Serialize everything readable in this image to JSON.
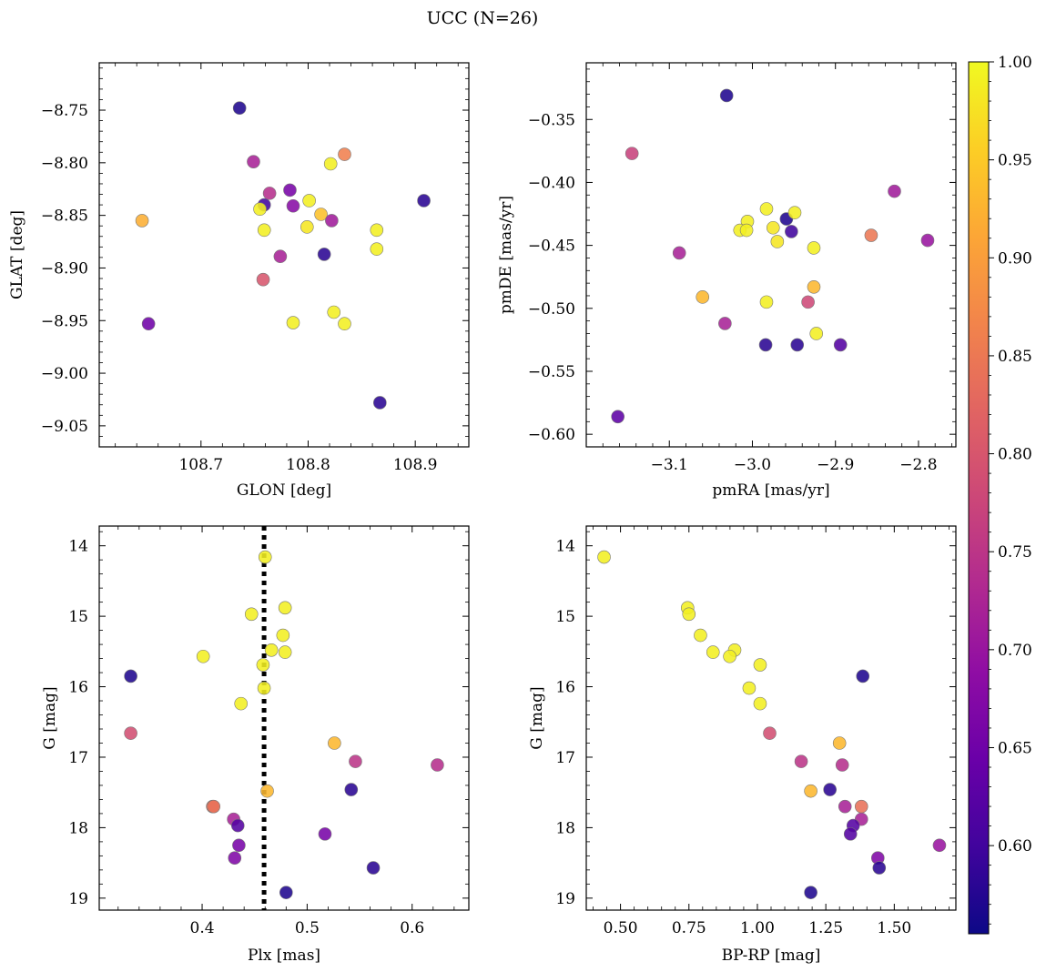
{
  "figure": {
    "suptitle": "UCC (N=26)"
  },
  "colorbar": {
    "vmin": 0.555,
    "vmax": 1.0,
    "ticks": [
      0.6,
      0.65,
      0.7,
      0.75,
      0.8,
      0.85,
      0.9,
      0.95,
      1.0
    ],
    "tick_labels": [
      "0.60",
      "0.65",
      "0.70",
      "0.75",
      "0.80",
      "0.85",
      "0.90",
      "0.95",
      "1.00"
    ],
    "colormap": "plasma"
  },
  "chart_data": [
    {
      "type": "scatter",
      "title": "",
      "xlabel": "GLON [deg]",
      "ylabel": "GLAT [deg]",
      "xlim": [
        108.605,
        108.95
      ],
      "ylim": [
        -9.07,
        -8.705
      ],
      "y_inverted": false,
      "xticks": [
        108.7,
        108.8,
        108.9
      ],
      "xtick_labels": [
        "108.7",
        "108.8",
        "108.9"
      ],
      "yticks": [
        -8.75,
        -8.8,
        -8.85,
        -8.9,
        -8.95,
        -9.0,
        -9.05
      ],
      "ytick_labels": [
        "−8.75",
        "−8.80",
        "−8.85",
        "−8.90",
        "−8.95",
        "−9.00",
        "−9.05"
      ],
      "points": [
        {
          "x": 108.736,
          "y": -8.748,
          "c": 0.57
        },
        {
          "x": 108.645,
          "y": -8.855,
          "c": 0.92
        },
        {
          "x": 108.651,
          "y": -8.953,
          "c": 0.65
        },
        {
          "x": 108.749,
          "y": -8.799,
          "c": 0.72
        },
        {
          "x": 108.764,
          "y": -8.829,
          "c": 0.74
        },
        {
          "x": 108.759,
          "y": -8.84,
          "c": 0.6
        },
        {
          "x": 108.755,
          "y": -8.844,
          "c": 0.99
        },
        {
          "x": 108.759,
          "y": -8.864,
          "c": 0.99
        },
        {
          "x": 108.758,
          "y": -8.911,
          "c": 0.8
        },
        {
          "x": 108.774,
          "y": -8.889,
          "c": 0.72
        },
        {
          "x": 108.783,
          "y": -8.826,
          "c": 0.66
        },
        {
          "x": 108.786,
          "y": -8.841,
          "c": 0.68
        },
        {
          "x": 108.801,
          "y": -8.836,
          "c": 0.99
        },
        {
          "x": 108.799,
          "y": -8.861,
          "c": 0.98
        },
        {
          "x": 108.786,
          "y": -8.952,
          "c": 0.99
        },
        {
          "x": 108.812,
          "y": -8.849,
          "c": 0.94
        },
        {
          "x": 108.821,
          "y": -8.801,
          "c": 0.99
        },
        {
          "x": 108.834,
          "y": -8.792,
          "c": 0.86
        },
        {
          "x": 108.822,
          "y": -8.855,
          "c": 0.71
        },
        {
          "x": 108.815,
          "y": -8.887,
          "c": 0.58
        },
        {
          "x": 108.824,
          "y": -8.942,
          "c": 0.99
        },
        {
          "x": 108.834,
          "y": -8.953,
          "c": 0.99
        },
        {
          "x": 108.864,
          "y": -8.864,
          "c": 0.99
        },
        {
          "x": 108.864,
          "y": -8.882,
          "c": 0.99
        },
        {
          "x": 108.908,
          "y": -8.836,
          "c": 0.58
        },
        {
          "x": 108.867,
          "y": -9.028,
          "c": 0.58
        }
      ]
    },
    {
      "type": "scatter",
      "title": "",
      "xlabel": "pmRA [mas/yr]",
      "ylabel": "pmDE [mas/yr]",
      "xlim": [
        -3.2,
        -2.755
      ],
      "ylim": [
        -0.61,
        -0.305
      ],
      "y_inverted": false,
      "xticks": [
        -3.1,
        -3.0,
        -2.9,
        -2.8
      ],
      "xtick_labels": [
        "−3.1",
        "−3.0",
        "−2.9",
        "−2.8"
      ],
      "yticks": [
        -0.35,
        -0.4,
        -0.45,
        -0.5,
        -0.55,
        -0.6
      ],
      "ytick_labels": [
        "−0.35",
        "−0.40",
        "−0.45",
        "−0.50",
        "−0.55",
        "−0.60"
      ],
      "points": [
        {
          "x": -3.031,
          "y": -0.331,
          "c": 0.57
        },
        {
          "x": -3.145,
          "y": -0.377,
          "c": 0.77
        },
        {
          "x": -2.829,
          "y": -0.407,
          "c": 0.71
        },
        {
          "x": -2.789,
          "y": -0.446,
          "c": 0.7
        },
        {
          "x": -2.857,
          "y": -0.442,
          "c": 0.85
        },
        {
          "x": -3.088,
          "y": -0.456,
          "c": 0.72
        },
        {
          "x": -2.983,
          "y": -0.421,
          "c": 0.99
        },
        {
          "x": -3.006,
          "y": -0.431,
          "c": 0.99
        },
        {
          "x": -3.015,
          "y": -0.438,
          "c": 0.99
        },
        {
          "x": -3.007,
          "y": -0.438,
          "c": 0.99
        },
        {
          "x": -2.975,
          "y": -0.436,
          "c": 0.98
        },
        {
          "x": -2.97,
          "y": -0.447,
          "c": 0.98
        },
        {
          "x": -2.959,
          "y": -0.429,
          "c": 0.57
        },
        {
          "x": -2.953,
          "y": -0.439,
          "c": 0.6
        },
        {
          "x": -2.949,
          "y": -0.424,
          "c": 0.99
        },
        {
          "x": -2.926,
          "y": -0.452,
          "c": 0.99
        },
        {
          "x": -2.926,
          "y": -0.483,
          "c": 0.93
        },
        {
          "x": -3.06,
          "y": -0.491,
          "c": 0.93
        },
        {
          "x": -2.983,
          "y": -0.495,
          "c": 0.99
        },
        {
          "x": -2.933,
          "y": -0.495,
          "c": 0.78
        },
        {
          "x": -3.033,
          "y": -0.512,
          "c": 0.72
        },
        {
          "x": -2.923,
          "y": -0.52,
          "c": 0.99
        },
        {
          "x": -2.984,
          "y": -0.529,
          "c": 0.58
        },
        {
          "x": -2.946,
          "y": -0.529,
          "c": 0.58
        },
        {
          "x": -2.894,
          "y": -0.529,
          "c": 0.62
        },
        {
          "x": -3.162,
          "y": -0.586,
          "c": 0.63
        }
      ]
    },
    {
      "type": "scatter",
      "title": "",
      "xlabel": "Plx [mas]",
      "ylabel": "G [mag]",
      "xlim": [
        0.302,
        0.654
      ],
      "ylim": [
        19.17,
        13.72
      ],
      "y_inverted": true,
      "xticks": [
        0.4,
        0.5,
        0.6
      ],
      "xtick_labels": [
        "0.4",
        "0.5",
        "0.6"
      ],
      "yticks": [
        14,
        15,
        16,
        17,
        18,
        19
      ],
      "ytick_labels": [
        "14",
        "15",
        "16",
        "17",
        "18",
        "19"
      ],
      "reference_line": {
        "axis": "x",
        "value": 0.459,
        "style": "dotted",
        "color": "#000000"
      },
      "points": [
        {
          "x": 0.46,
          "y": 14.16,
          "c": 0.99
        },
        {
          "x": 0.447,
          "y": 14.97,
          "c": 0.99
        },
        {
          "x": 0.479,
          "y": 14.88,
          "c": 0.99
        },
        {
          "x": 0.477,
          "y": 15.27,
          "c": 0.99
        },
        {
          "x": 0.466,
          "y": 15.48,
          "c": 0.99
        },
        {
          "x": 0.479,
          "y": 15.51,
          "c": 0.99
        },
        {
          "x": 0.401,
          "y": 15.57,
          "c": 0.99
        },
        {
          "x": 0.458,
          "y": 15.69,
          "c": 0.99
        },
        {
          "x": 0.459,
          "y": 16.02,
          "c": 0.99
        },
        {
          "x": 0.437,
          "y": 16.24,
          "c": 0.99
        },
        {
          "x": 0.462,
          "y": 17.48,
          "c": 0.93
        },
        {
          "x": 0.526,
          "y": 16.8,
          "c": 0.93
        },
        {
          "x": 0.546,
          "y": 17.06,
          "c": 0.75
        },
        {
          "x": 0.624,
          "y": 17.11,
          "c": 0.74
        },
        {
          "x": 0.332,
          "y": 15.85,
          "c": 0.57
        },
        {
          "x": 0.332,
          "y": 16.66,
          "c": 0.79
        },
        {
          "x": 0.542,
          "y": 17.46,
          "c": 0.58
        },
        {
          "x": 0.41,
          "y": 17.7,
          "c": 0.84
        },
        {
          "x": 0.411,
          "y": 17.7,
          "c": 0.84
        },
        {
          "x": 0.43,
          "y": 17.88,
          "c": 0.72
        },
        {
          "x": 0.434,
          "y": 17.97,
          "c": 0.62
        },
        {
          "x": 0.517,
          "y": 18.09,
          "c": 0.66
        },
        {
          "x": 0.435,
          "y": 18.25,
          "c": 0.66
        },
        {
          "x": 0.431,
          "y": 18.43,
          "c": 0.67
        },
        {
          "x": 0.563,
          "y": 18.57,
          "c": 0.58
        },
        {
          "x": 0.48,
          "y": 18.92,
          "c": 0.57
        }
      ]
    },
    {
      "type": "scatter",
      "title": "",
      "xlabel": "BP-RP [mag]",
      "ylabel": "G [mag]",
      "xlim": [
        0.375,
        1.725
      ],
      "ylim": [
        19.17,
        13.72
      ],
      "y_inverted": true,
      "xticks": [
        0.5,
        0.75,
        1.0,
        1.25,
        1.5
      ],
      "xtick_labels": [
        "0.50",
        "0.75",
        "1.00",
        "1.25",
        "1.50"
      ],
      "yticks": [
        14,
        15,
        16,
        17,
        18,
        19
      ],
      "ytick_labels": [
        "14",
        "15",
        "16",
        "17",
        "18",
        "19"
      ],
      "points": [
        {
          "x": 0.44,
          "y": 14.16,
          "c": 0.99
        },
        {
          "x": 0.745,
          "y": 14.88,
          "c": 0.99
        },
        {
          "x": 0.75,
          "y": 14.97,
          "c": 0.99
        },
        {
          "x": 0.792,
          "y": 15.27,
          "c": 0.99
        },
        {
          "x": 0.838,
          "y": 15.51,
          "c": 0.99
        },
        {
          "x": 0.917,
          "y": 15.48,
          "c": 0.99
        },
        {
          "x": 0.899,
          "y": 15.57,
          "c": 0.99
        },
        {
          "x": 1.01,
          "y": 15.69,
          "c": 0.99
        },
        {
          "x": 0.97,
          "y": 16.02,
          "c": 0.99
        },
        {
          "x": 1.01,
          "y": 16.24,
          "c": 0.99
        },
        {
          "x": 1.045,
          "y": 16.66,
          "c": 0.79
        },
        {
          "x": 1.3,
          "y": 16.8,
          "c": 0.93
        },
        {
          "x": 1.16,
          "y": 17.06,
          "c": 0.75
        },
        {
          "x": 1.31,
          "y": 17.11,
          "c": 0.74
        },
        {
          "x": 1.195,
          "y": 17.48,
          "c": 0.93
        },
        {
          "x": 1.265,
          "y": 17.46,
          "c": 0.58
        },
        {
          "x": 1.385,
          "y": 15.85,
          "c": 0.57
        },
        {
          "x": 1.32,
          "y": 17.7,
          "c": 0.72
        },
        {
          "x": 1.38,
          "y": 17.7,
          "c": 0.84
        },
        {
          "x": 1.38,
          "y": 17.88,
          "c": 0.72
        },
        {
          "x": 1.35,
          "y": 17.97,
          "c": 0.62
        },
        {
          "x": 1.34,
          "y": 18.09,
          "c": 0.62
        },
        {
          "x": 1.665,
          "y": 18.25,
          "c": 0.7
        },
        {
          "x": 1.44,
          "y": 18.43,
          "c": 0.67
        },
        {
          "x": 1.445,
          "y": 18.57,
          "c": 0.58
        },
        {
          "x": 1.195,
          "y": 18.92,
          "c": 0.57
        }
      ]
    }
  ]
}
